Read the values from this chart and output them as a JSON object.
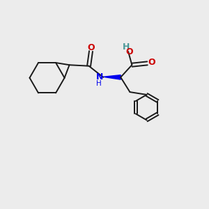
{
  "bg_color": "#ececec",
  "bond_color": "#1a1a1a",
  "oxygen_color": "#cc0000",
  "nitrogen_color": "#0000ee",
  "teal_color": "#4d9999",
  "font_size_atom": 8.5,
  "line_width": 1.4,
  "figure_size": [
    3.0,
    3.0
  ],
  "dpi": 100,
  "xlim": [
    0,
    10
  ],
  "ylim": [
    0,
    10
  ]
}
